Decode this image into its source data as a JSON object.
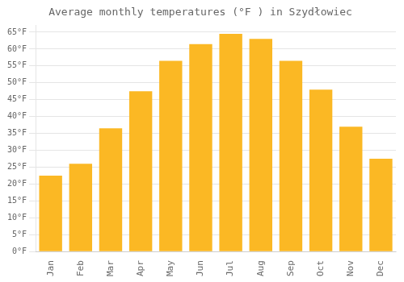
{
  "chart_data": {
    "type": "bar",
    "title": "Average monthly temperatures (°F ) in Szydłowiec",
    "categories": [
      "Jan",
      "Feb",
      "Mar",
      "Apr",
      "May",
      "Jun",
      "Jul",
      "Aug",
      "Sep",
      "Oct",
      "Nov",
      "Dec"
    ],
    "values": [
      22.5,
      26.0,
      36.5,
      47.5,
      56.5,
      61.5,
      64.5,
      63.0,
      56.5,
      48.0,
      37.0,
      27.5
    ],
    "color": "#FBB824",
    "ylim": [
      0,
      67
    ],
    "yticks": [
      {
        "value": 0,
        "label": "0°F"
      },
      {
        "value": 5,
        "label": "5°F"
      },
      {
        "value": 10,
        "label": "10°F"
      },
      {
        "value": 15,
        "label": "15°F"
      },
      {
        "value": 20,
        "label": "20°F"
      },
      {
        "value": 25,
        "label": "25°F"
      },
      {
        "value": 30,
        "label": "30°F"
      },
      {
        "value": 35,
        "label": "35°F"
      },
      {
        "value": 40,
        "label": "40°F"
      },
      {
        "value": 45,
        "label": "45°F"
      },
      {
        "value": 50,
        "label": "50°F"
      },
      {
        "value": 55,
        "label": "55°F"
      },
      {
        "value": 60,
        "label": "60°F"
      },
      {
        "value": 65,
        "label": "65°F"
      }
    ],
    "grid": true
  }
}
